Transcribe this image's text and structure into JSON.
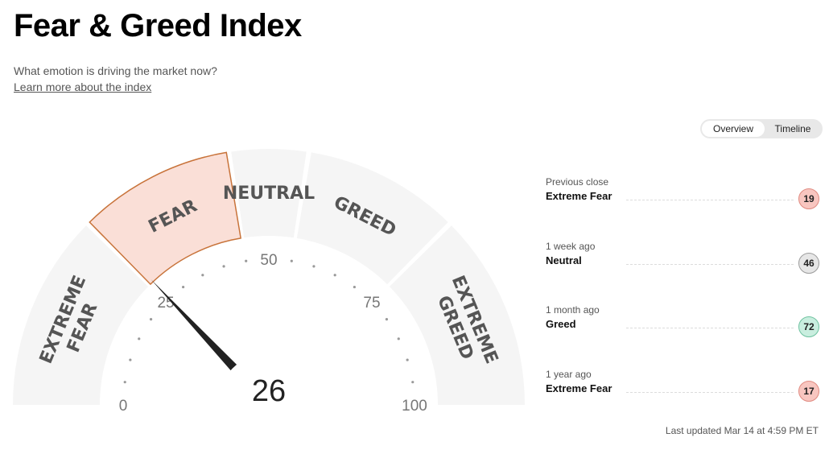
{
  "header": {
    "title": "Fear & Greed Index",
    "subtitle": "What emotion is driving the market now?",
    "learn_link": "Learn more about the index"
  },
  "view_toggle": {
    "options": [
      "Overview",
      "Timeline"
    ],
    "selected": "Overview"
  },
  "gauge": {
    "value": 26,
    "value_text": "26",
    "range": [
      0,
      100
    ],
    "active_segment": "FEAR",
    "segments": [
      {
        "from": 0,
        "to": 25,
        "label_lines": [
          "EXTREME",
          "FEAR"
        ]
      },
      {
        "from": 25,
        "to": 45,
        "label_lines": [
          "FEAR"
        ]
      },
      {
        "from": 45,
        "to": 55,
        "label_lines": [
          "NEUTRAL"
        ]
      },
      {
        "from": 55,
        "to": 75,
        "label_lines": [
          "GREED"
        ]
      },
      {
        "from": 75,
        "to": 100,
        "label_lines": [
          "EXTREME",
          "GREED"
        ]
      }
    ],
    "scale_labels": [
      {
        "value": 0,
        "text": "0"
      },
      {
        "value": 25,
        "text": "25"
      },
      {
        "value": 50,
        "text": "50"
      },
      {
        "value": 75,
        "text": "75"
      },
      {
        "value": 100,
        "text": "100"
      }
    ],
    "colors": {
      "segment_fill": "#f5f5f5",
      "active_fill": "#fadfd7",
      "active_stroke": "#c8733a",
      "label": "#666666",
      "needle": "#222222",
      "dots": "#9a9a9a",
      "center": "#ffffff"
    }
  },
  "history": [
    {
      "period": "Previous close",
      "rating": "Extreme Fear",
      "value": "19",
      "bg": "#f8c6c0",
      "border": "#e08a80"
    },
    {
      "period": "1 week ago",
      "rating": "Neutral",
      "value": "46",
      "bg": "#e6e6e6",
      "border": "#9c9c9c"
    },
    {
      "period": "1 month ago",
      "rating": "Greed",
      "value": "72",
      "bg": "#c9eedf",
      "border": "#6fc2a0"
    },
    {
      "period": "1 year ago",
      "rating": "Extreme Fear",
      "value": "17",
      "bg": "#f8c6c0",
      "border": "#e08a80"
    }
  ],
  "last_updated": "Last updated Mar 14 at 4:59 PM ET"
}
